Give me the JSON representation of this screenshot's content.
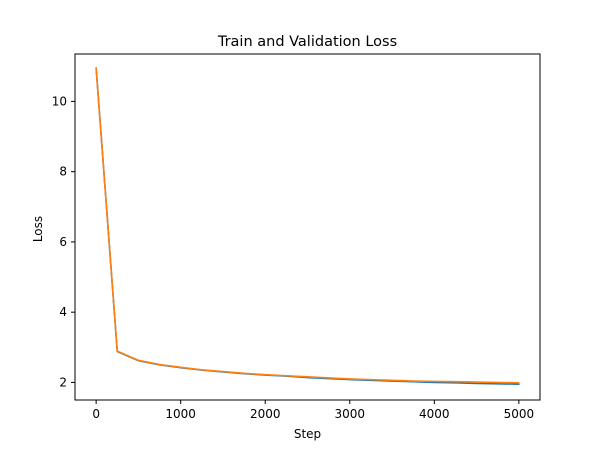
{
  "chart_data": {
    "type": "line",
    "title": "Train and Validation Loss",
    "xlabel": "Step",
    "ylabel": "Loss",
    "xlim": [
      -250,
      5250
    ],
    "ylim": [
      1.5,
      11.35
    ],
    "x_ticks": [
      0,
      1000,
      2000,
      3000,
      4000,
      5000
    ],
    "x_tick_labels": [
      "0",
      "1000",
      "2000",
      "3000",
      "4000",
      "5000"
    ],
    "y_ticks": [
      2,
      4,
      6,
      8,
      10
    ],
    "y_tick_labels": [
      "2",
      "4",
      "6",
      "8",
      "10"
    ],
    "grid": false,
    "x": [
      0,
      250,
      500,
      750,
      1000,
      1250,
      1500,
      1750,
      2000,
      2250,
      2500,
      2750,
      3000,
      3250,
      3500,
      3750,
      4000,
      4250,
      4500,
      4750,
      5000
    ],
    "series": [
      {
        "color": "#1f77b4",
        "values": [
          10.95,
          2.88,
          2.62,
          2.5,
          2.42,
          2.35,
          2.3,
          2.25,
          2.21,
          2.18,
          2.14,
          2.11,
          2.08,
          2.06,
          2.04,
          2.02,
          2.0,
          1.99,
          1.97,
          1.96,
          1.95
        ]
      },
      {
        "color": "#ff7f0e",
        "values": [
          10.95,
          2.89,
          2.63,
          2.51,
          2.43,
          2.36,
          2.31,
          2.26,
          2.22,
          2.19,
          2.16,
          2.13,
          2.1,
          2.08,
          2.06,
          2.04,
          2.03,
          2.02,
          2.01,
          2.0,
          1.99
        ]
      }
    ]
  }
}
